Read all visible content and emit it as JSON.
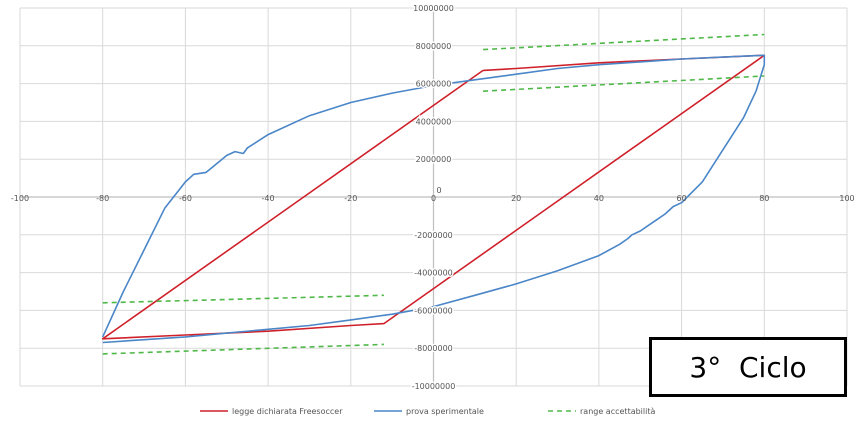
{
  "cycle_label": "3°  Ciclo",
  "colors": {
    "theory": "#d0212b",
    "experimental": "#4a86c8",
    "range": "#4fb848",
    "grid": "#d9d9d9",
    "axis": "#bfbfbf"
  },
  "chart_data": {
    "type": "line",
    "title": "",
    "xlabel": "",
    "ylabel": "",
    "xlim": [
      -100,
      100
    ],
    "ylim": [
      -10000000,
      10000000
    ],
    "x_ticks": [
      -100,
      -80,
      -60,
      -40,
      -20,
      0,
      20,
      40,
      60,
      80,
      100
    ],
    "y_ticks": [
      -10000000,
      -8000000,
      -6000000,
      -4000000,
      -2000000,
      0,
      2000000,
      4000000,
      6000000,
      8000000,
      10000000
    ],
    "grid": true,
    "legend_position": "bottom",
    "series": [
      {
        "name": "legge dichiarata Freesoccer",
        "style": "solid",
        "color_key": "theory",
        "x": [
          12,
          20,
          40,
          60,
          80,
          80,
          -12,
          -20,
          -40,
          -60,
          -80,
          -80,
          12
        ],
        "y": [
          6700000,
          6800000,
          7100000,
          7300000,
          7500000,
          7500000,
          -6700000,
          -6800000,
          -7100000,
          -7300000,
          -7500000,
          -7500000,
          6700000
        ]
      },
      {
        "name": "prova sperimentale",
        "style": "solid",
        "color_key": "experimental",
        "x": [
          -80,
          -75,
          -70,
          -65,
          -60,
          -58,
          -55,
          -50,
          -48,
          -46,
          -45,
          -40,
          -30,
          -20,
          -10,
          0,
          10,
          20,
          30,
          40,
          50,
          60,
          70,
          80,
          80,
          78,
          75,
          70,
          65,
          60,
          58,
          56,
          54,
          52,
          50,
          48,
          47,
          45,
          40,
          30,
          20,
          10,
          0,
          -10,
          -20,
          -30,
          -40,
          -50,
          -60,
          -70,
          -80
        ],
        "y": [
          -7400000,
          -5000000,
          -2800000,
          -600000,
          800000,
          1200000,
          1300000,
          2200000,
          2400000,
          2300000,
          2600000,
          3300000,
          4300000,
          5000000,
          5500000,
          5900000,
          6200000,
          6500000,
          6800000,
          7000000,
          7150000,
          7300000,
          7400000,
          7500000,
          7000000,
          5600000,
          4200000,
          2500000,
          800000,
          -300000,
          -500000,
          -900000,
          -1200000,
          -1500000,
          -1800000,
          -2000000,
          -2200000,
          -2500000,
          -3100000,
          -3900000,
          -4600000,
          -5200000,
          -5800000,
          -6200000,
          -6500000,
          -6800000,
          -7000000,
          -7200000,
          -7400000,
          -7550000,
          -7700000
        ]
      },
      {
        "name": "range accettabilità",
        "style": "dashed",
        "color_key": "range",
        "segments": [
          {
            "x": [
              12,
              80
            ],
            "y": [
              7800000,
              8600000
            ]
          },
          {
            "x": [
              12,
              80
            ],
            "y": [
              5600000,
              6400000
            ]
          },
          {
            "x": [
              -80,
              -12
            ],
            "y": [
              -5600000,
              -5200000
            ]
          },
          {
            "x": [
              -80,
              -12
            ],
            "y": [
              -8300000,
              -7800000
            ]
          }
        ]
      }
    ]
  }
}
